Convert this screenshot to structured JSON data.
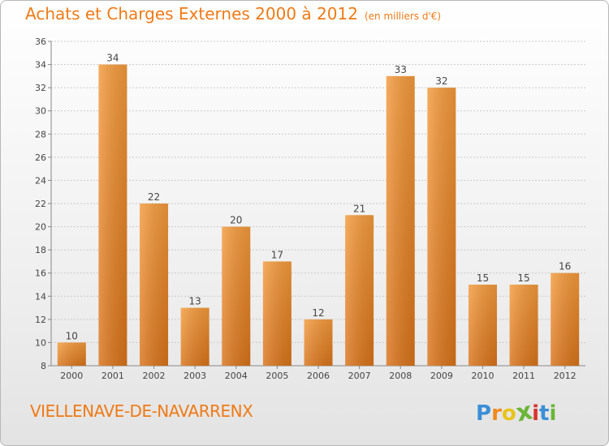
{
  "header": {
    "title": "Achats et Charges Externes 2000 à 2012",
    "subtitle": "(en milliers d'€)"
  },
  "footer": {
    "commune": "VIELLENAVE-DE-NAVARRENX",
    "logo_letters": [
      "P",
      "r",
      "o",
      "x",
      "i",
      "t",
      "i"
    ],
    "logo_colors": [
      "#3a8fd6",
      "#f08a1d",
      "#e8c31b",
      "#6bb53a",
      "#d8342c",
      "#3a8fd6",
      "#6bb53a"
    ]
  },
  "chart_data": {
    "type": "bar",
    "categories": [
      "2000",
      "2001",
      "2002",
      "2003",
      "2004",
      "2005",
      "2006",
      "2007",
      "2008",
      "2009",
      "2010",
      "2011",
      "2012"
    ],
    "values": [
      10,
      34,
      22,
      13,
      20,
      17,
      12,
      21,
      33,
      32,
      15,
      15,
      16
    ],
    "data_labels": [
      "10",
      "34",
      "22",
      "13",
      "20",
      "17",
      "12",
      "21",
      "33",
      "32",
      "15",
      "15",
      "16"
    ],
    "yticks": [
      8,
      10,
      12,
      14,
      16,
      18,
      20,
      22,
      24,
      26,
      28,
      30,
      32,
      34,
      36
    ],
    "ylim": [
      8,
      36
    ],
    "grid": true,
    "bar_color": "#f39a3c",
    "bar_color_dark": "#d8731a"
  }
}
